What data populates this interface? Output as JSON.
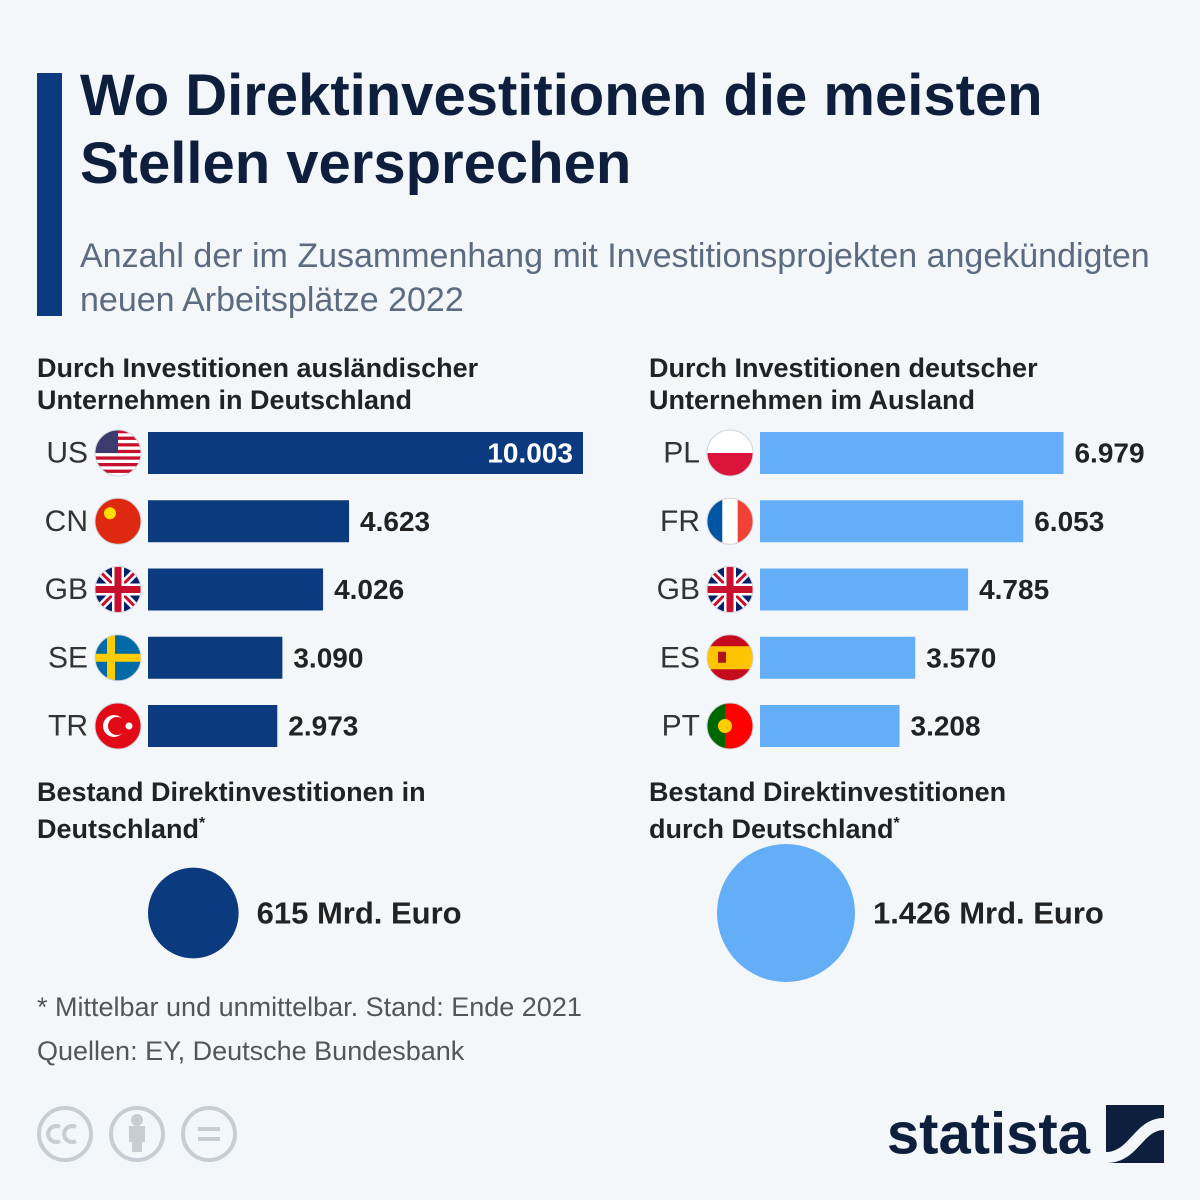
{
  "title": "Wo Direktinvestitionen die meisten Stellen versprechen",
  "subtitle": "Anzahl der im Zusammenhang mit Investitionsprojekten angekündigten neuen Arbeitsplätze 2022",
  "chart_data": [
    {
      "type": "bar",
      "title": "Durch Investitionen ausländischer Unternehmen in Deutschland",
      "categories": [
        "US",
        "CN",
        "GB",
        "SE",
        "TR"
      ],
      "values": [
        10003,
        4623,
        4026,
        3090,
        2973
      ],
      "value_labels": [
        "10.003",
        "4.623",
        "4.026",
        "3.090",
        "2.973"
      ],
      "color": "#0b3a7e"
    },
    {
      "type": "bar",
      "title": "Durch Investitionen deutscher Unternehmen im Ausland",
      "categories": [
        "PL",
        "FR",
        "GB",
        "ES",
        "PT"
      ],
      "values": [
        6979,
        6053,
        4785,
        3570,
        3208
      ],
      "value_labels": [
        "6.979",
        "6.053",
        "4.785",
        "3.570",
        "3.208"
      ],
      "color": "#64aef7"
    },
    {
      "type": "bubble",
      "title": "Bestand Direktinvestitionen in Deutschland",
      "title_note": "*",
      "values": [
        615
      ],
      "value_labels": [
        "615 Mrd. Euro"
      ],
      "color": "#0b3a7e"
    },
    {
      "type": "bubble",
      "title": "Bestand Direktinvestitionen durch Deutschland",
      "title_note": "*",
      "values": [
        1426
      ],
      "value_labels": [
        "1.426 Mrd. Euro"
      ],
      "color": "#64aef7"
    }
  ],
  "footnote": "* Mittelbar und unmittelbar. Stand: Ende 2021",
  "source": "Quellen: EY, Deutsche Bundesbank",
  "brand": "statista"
}
